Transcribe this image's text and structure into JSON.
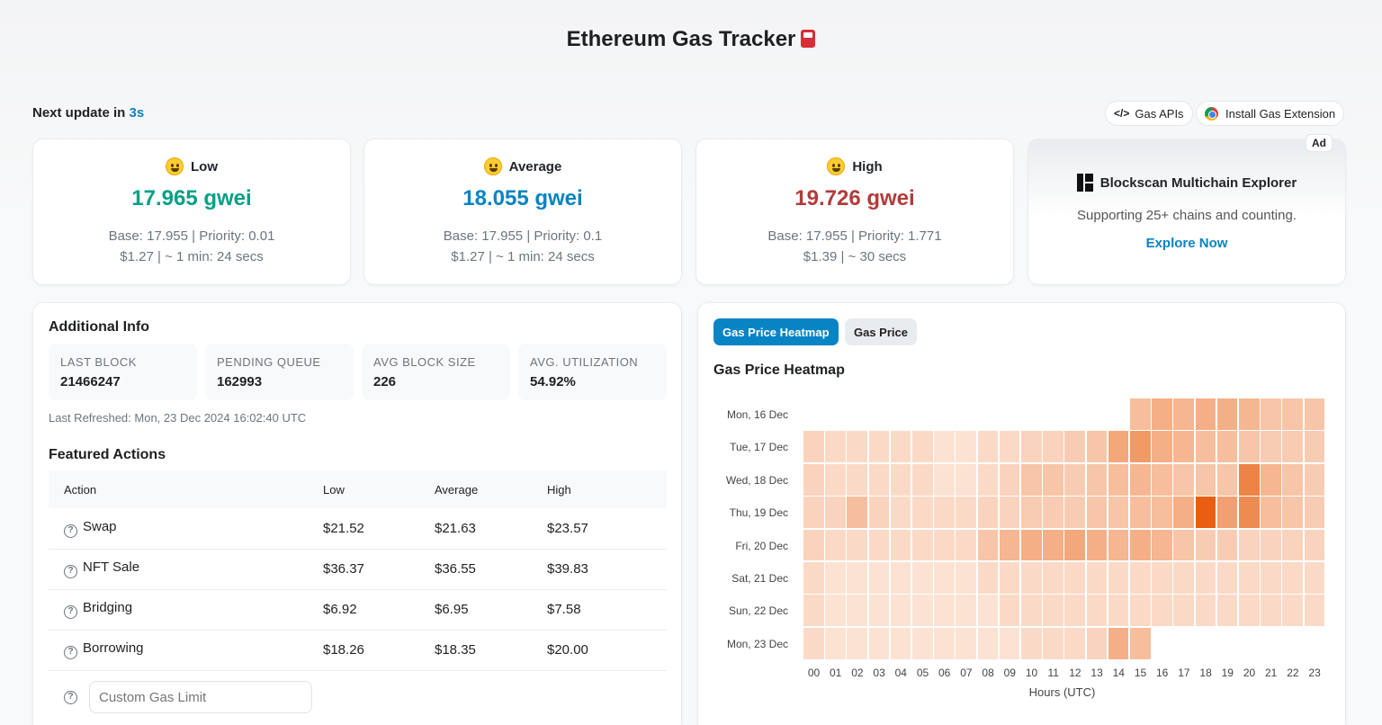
{
  "header": {
    "title": "Ethereum Gas Tracker"
  },
  "update": {
    "prefix": "Next update in",
    "seconds": "3s"
  },
  "toolbar": {
    "gas_apis": "Gas APIs",
    "gas_apis_icon": "</>",
    "install_extension": "Install Gas Extension"
  },
  "gas": {
    "low": {
      "label": "Low",
      "price": "17.965 gwei",
      "base": "Base: 17.955 | Priority: 0.01",
      "cost": "$1.27 | ~ 1 min: 24 secs",
      "color": "#00a186"
    },
    "average": {
      "label": "Average",
      "price": "18.055 gwei",
      "base": "Base: 17.955 | Priority: 0.1",
      "cost": "$1.27 | ~ 1 min: 24 secs",
      "color": "#0784c3"
    },
    "high": {
      "label": "High",
      "price": "19.726 gwei",
      "base": "Base: 17.955 | Priority: 1.771",
      "cost": "$1.39 | ~ 30 secs",
      "color": "#b23b3b"
    }
  },
  "ad": {
    "badge": "Ad",
    "title": "Blockscan Multichain Explorer",
    "description": "Supporting 25+ chains and counting.",
    "link": "Explore Now"
  },
  "info": {
    "title": "Additional Info",
    "stats": [
      {
        "label": "LAST BLOCK",
        "value": "21466247"
      },
      {
        "label": "PENDING QUEUE",
        "value": "162993"
      },
      {
        "label": "AVG BLOCK SIZE",
        "value": "226"
      },
      {
        "label": "AVG. UTILIZATION",
        "value": "54.92%"
      }
    ],
    "refreshed": "Last Refreshed: Mon, 23 Dec 2024 16:02:40 UTC"
  },
  "featured": {
    "title": "Featured Actions",
    "columns": [
      "Action",
      "Low",
      "Average",
      "High"
    ],
    "rows": [
      {
        "action": "Swap",
        "low": "$21.52",
        "average": "$21.63",
        "high": "$23.57"
      },
      {
        "action": "NFT Sale",
        "low": "$36.37",
        "average": "$36.55",
        "high": "$39.83"
      },
      {
        "action": "Bridging",
        "low": "$6.92",
        "average": "$6.95",
        "high": "$7.58"
      },
      {
        "action": "Borrowing",
        "low": "$18.26",
        "average": "$18.35",
        "high": "$20.00"
      }
    ],
    "custom_placeholder": "Custom Gas Limit"
  },
  "tabs": {
    "heatmap": "Gas Price Heatmap",
    "price": "Gas Price"
  },
  "chart_data": {
    "type": "heatmap",
    "title": "Gas Price Heatmap",
    "xlabel": "Hours (UTC)",
    "x": [
      "00",
      "01",
      "02",
      "03",
      "04",
      "05",
      "06",
      "07",
      "08",
      "09",
      "10",
      "11",
      "12",
      "13",
      "14",
      "15",
      "16",
      "17",
      "18",
      "19",
      "20",
      "21",
      "22",
      "23"
    ],
    "y": [
      "Mon, 16 Dec",
      "Tue, 17 Dec",
      "Wed, 18 Dec",
      "Thu, 19 Dec",
      "Fri, 20 Dec",
      "Sat, 21 Dec",
      "Sun, 22 Dec",
      "Mon, 23 Dec"
    ],
    "color_scale": [
      "#fdf0e8",
      "#e8600f"
    ],
    "values": [
      [
        null,
        null,
        null,
        null,
        null,
        null,
        null,
        null,
        null,
        null,
        null,
        null,
        null,
        null,
        null,
        0.35,
        0.45,
        0.4,
        0.45,
        0.45,
        0.4,
        0.3,
        0.3,
        0.3
      ],
      [
        0.2,
        0.15,
        0.15,
        0.15,
        0.15,
        0.15,
        0.1,
        0.1,
        0.15,
        0.15,
        0.2,
        0.2,
        0.25,
        0.3,
        0.5,
        0.6,
        0.45,
        0.4,
        0.35,
        0.35,
        0.3,
        0.25,
        0.25,
        0.25
      ],
      [
        0.2,
        0.15,
        0.15,
        0.15,
        0.15,
        0.15,
        0.1,
        0.1,
        0.15,
        0.2,
        0.3,
        0.3,
        0.25,
        0.3,
        0.35,
        0.4,
        0.35,
        0.3,
        0.3,
        0.3,
        0.75,
        0.4,
        0.3,
        0.25
      ],
      [
        0.2,
        0.2,
        0.35,
        0.2,
        0.15,
        0.15,
        0.15,
        0.15,
        0.2,
        0.2,
        0.25,
        0.25,
        0.25,
        0.3,
        0.3,
        0.35,
        0.35,
        0.45,
        1.0,
        0.55,
        0.7,
        0.35,
        0.3,
        0.25
      ],
      [
        0.2,
        0.15,
        0.15,
        0.15,
        0.15,
        0.15,
        0.15,
        0.15,
        0.3,
        0.4,
        0.45,
        0.45,
        0.5,
        0.45,
        0.4,
        0.45,
        0.4,
        0.3,
        0.25,
        0.25,
        0.2,
        0.2,
        0.2,
        0.2
      ],
      [
        0.15,
        0.1,
        0.1,
        0.1,
        0.1,
        0.1,
        0.1,
        0.1,
        0.15,
        0.15,
        0.15,
        0.15,
        0.15,
        0.15,
        0.15,
        0.15,
        0.15,
        0.15,
        0.15,
        0.15,
        0.15,
        0.15,
        0.15,
        0.15
      ],
      [
        0.15,
        0.1,
        0.1,
        0.1,
        0.1,
        0.1,
        0.1,
        0.1,
        0.1,
        0.15,
        0.15,
        0.15,
        0.15,
        0.15,
        0.15,
        0.15,
        0.15,
        0.15,
        0.15,
        0.15,
        0.15,
        0.15,
        0.15,
        0.15
      ],
      [
        0.15,
        0.1,
        0.1,
        0.1,
        0.1,
        0.1,
        0.1,
        0.1,
        0.1,
        0.1,
        0.15,
        0.15,
        0.15,
        0.2,
        0.45,
        0.35,
        null,
        null,
        null,
        null,
        null,
        null,
        null,
        null
      ]
    ]
  }
}
